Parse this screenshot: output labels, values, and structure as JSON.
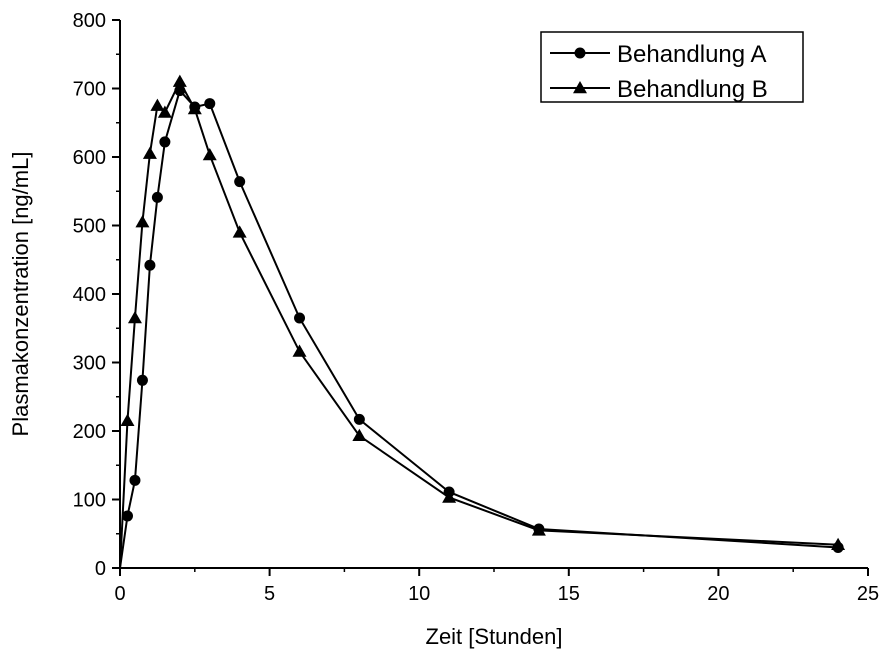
{
  "chart_data": {
    "type": "line",
    "title": "",
    "xlabel": "Zeit [Stunden]",
    "ylabel": "Plasmakonzentration [ng/mL]",
    "xlim": [
      0,
      25
    ],
    "ylim": [
      0,
      800
    ],
    "xticks": [
      0,
      5,
      10,
      15,
      20,
      25
    ],
    "yticks": [
      0,
      100,
      200,
      300,
      400,
      500,
      600,
      700,
      800
    ],
    "grid": false,
    "legend_position": "top-right",
    "series": [
      {
        "name": "Behandlung A",
        "marker": "circle",
        "color": "#000000",
        "x": [
          0,
          0.25,
          0.5,
          0.75,
          1,
          1.25,
          1.5,
          2,
          2.5,
          3,
          4,
          6,
          8,
          11,
          14,
          24
        ],
        "y": [
          0,
          76,
          128,
          274,
          442,
          541,
          622,
          697,
          673,
          678,
          564,
          365,
          217,
          111,
          57,
          30
        ]
      },
      {
        "name": "Behandlung B",
        "marker": "triangle",
        "color": "#000000",
        "x": [
          0,
          0.25,
          0.5,
          0.75,
          1,
          1.25,
          1.5,
          2,
          2.5,
          3,
          4,
          6,
          8,
          11,
          14,
          24
        ],
        "y": [
          0,
          215,
          365,
          505,
          605,
          675,
          665,
          710,
          670,
          603,
          490,
          316,
          193,
          103,
          55,
          34
        ]
      }
    ]
  }
}
